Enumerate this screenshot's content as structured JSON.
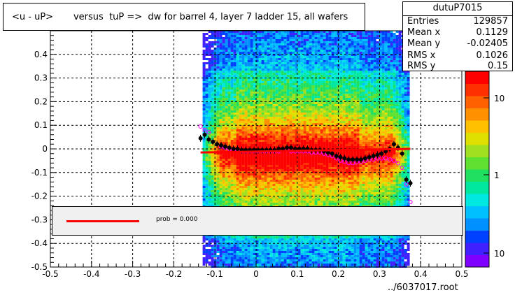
{
  "title": "<u - uP>       versus  tuP =>  dw for barrel 4, layer 7 ladder 15, all wafers",
  "stats": {
    "name": "dutuP7015",
    "rows": [
      {
        "label": "Entries",
        "value": "129857"
      },
      {
        "label": "Mean x",
        "value": "0.1129"
      },
      {
        "label": "Mean y",
        "value": "-0.02405"
      },
      {
        "label": "RMS x",
        "value": "0.1026"
      },
      {
        "label": "RMS y",
        "value": "0.15"
      }
    ]
  },
  "fit_legend": {
    "text": "prob = 0.000",
    "color": "#ff0000"
  },
  "footer": "../6037017.root",
  "chart_data": {
    "type": "heatmap",
    "xlim": [
      -0.5,
      0.5
    ],
    "ylim": [
      -0.5,
      0.5
    ],
    "x_ticks": [
      "-0.5",
      "-0.4",
      "-0.3",
      "-0.2",
      "-0.1",
      "0",
      "0.1",
      "0.2",
      "0.3",
      "0.4",
      "0.5"
    ],
    "y_ticks": [
      "-0.5",
      "-0.4",
      "-0.3",
      "-0.2",
      "-0.1",
      "0",
      "0.1",
      "0.2",
      "0.3",
      "0.4"
    ],
    "grid": true,
    "heatmap": {
      "x_range": [
        -0.13,
        0.37
      ],
      "y_range": [
        -0.5,
        0.5
      ],
      "ridge_y": -0.02,
      "core_x_range": [
        -0.05,
        0.25
      ]
    },
    "colorbar": {
      "scale": "log",
      "tick_labels": [
        "10",
        "1",
        "10"
      ],
      "colors": [
        "#8000ff",
        "#4020ff",
        "#0040ff",
        "#0090ff",
        "#00c0ff",
        "#00e8e0",
        "#00e8a0",
        "#20e060",
        "#60e030",
        "#a0e020",
        "#e0e000",
        "#ffc000",
        "#ff9000",
        "#ff6000",
        "#ff3000",
        "#ff0000"
      ]
    },
    "profile_black": {
      "x": [
        -0.135,
        -0.125,
        -0.115,
        -0.105,
        -0.095,
        -0.085,
        -0.075,
        -0.065,
        -0.055,
        -0.045,
        -0.035,
        -0.025,
        -0.015,
        -0.005,
        0.005,
        0.015,
        0.025,
        0.035,
        0.045,
        0.055,
        0.065,
        0.075,
        0.085,
        0.095,
        0.105,
        0.115,
        0.125,
        0.135,
        0.145,
        0.155,
        0.165,
        0.175,
        0.185,
        0.195,
        0.205,
        0.215,
        0.225,
        0.235,
        0.245,
        0.255,
        0.265,
        0.275,
        0.285,
        0.295,
        0.305,
        0.315,
        0.325,
        0.335,
        0.345,
        0.355,
        0.365,
        0.375
      ],
      "y": [
        0.045,
        0.06,
        0.04,
        0.03,
        0.02,
        0.015,
        0.01,
        0.005,
        0.0,
        0.0,
        -0.005,
        -0.005,
        -0.005,
        -0.005,
        -0.005,
        -0.005,
        -0.005,
        -0.005,
        -0.005,
        0.0,
        0.0,
        0.005,
        0.005,
        0.0,
        0.0,
        0.0,
        0.0,
        -0.005,
        -0.005,
        -0.005,
        -0.01,
        -0.015,
        -0.02,
        -0.03,
        -0.035,
        -0.04,
        -0.045,
        -0.045,
        -0.045,
        -0.045,
        -0.04,
        -0.035,
        -0.03,
        -0.025,
        -0.02,
        -0.01,
        0.0,
        0.02,
        0.005,
        -0.02,
        -0.13,
        -0.145
      ]
    },
    "profile_magenta": {
      "x": [
        -0.135,
        -0.125,
        -0.115,
        -0.105,
        -0.095,
        -0.085,
        -0.075,
        -0.065,
        -0.055,
        -0.045,
        -0.035,
        -0.025,
        -0.015,
        -0.005,
        0.005,
        0.015,
        0.025,
        0.035,
        0.045,
        0.055,
        0.065,
        0.075,
        0.085,
        0.095,
        0.105,
        0.115,
        0.125,
        0.135,
        0.145,
        0.155,
        0.165,
        0.175,
        0.185,
        0.195,
        0.205,
        0.215,
        0.225,
        0.235,
        0.245,
        0.255,
        0.265,
        0.275,
        0.285,
        0.295,
        0.305,
        0.315,
        0.325,
        0.335,
        0.345,
        0.355,
        0.365,
        0.375
      ],
      "y": [
        0.095,
        0.08,
        0.07,
        0.03,
        0.02,
        0.01,
        0.005,
        0.0,
        -0.005,
        -0.005,
        -0.01,
        -0.01,
        -0.01,
        -0.01,
        -0.01,
        -0.01,
        -0.01,
        -0.01,
        -0.01,
        -0.01,
        -0.005,
        -0.005,
        -0.01,
        -0.01,
        -0.01,
        -0.01,
        -0.01,
        -0.015,
        -0.015,
        -0.015,
        -0.02,
        -0.025,
        -0.03,
        -0.04,
        -0.05,
        -0.055,
        -0.06,
        -0.06,
        -0.055,
        -0.055,
        -0.05,
        -0.045,
        -0.045,
        -0.04,
        -0.04,
        -0.04,
        -0.045,
        -0.05,
        -0.06,
        -0.08,
        -0.15,
        -0.225
      ]
    },
    "fit_line": {
      "x": [
        -0.135,
        0.375
      ],
      "y": [
        -0.015,
        0.0
      ]
    }
  }
}
